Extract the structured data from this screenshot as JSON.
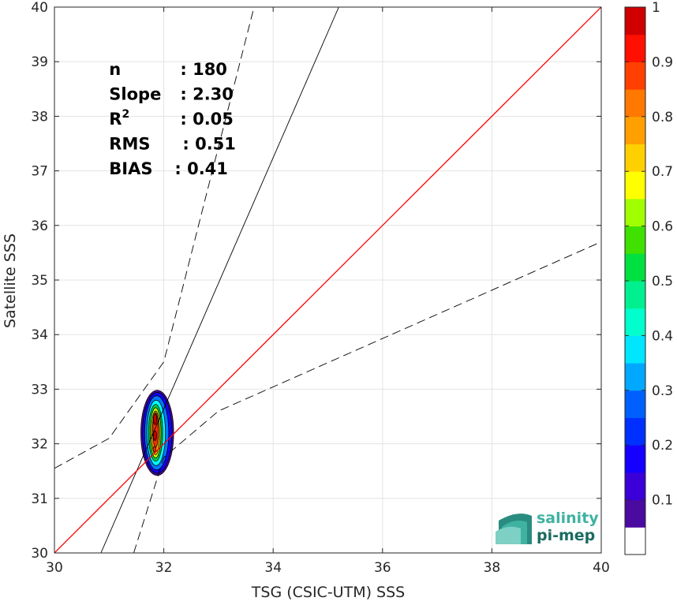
{
  "chart_data": {
    "type": "scatter",
    "xlabel": "TSG (CSIC-UTM) SSS",
    "ylabel": "Satellite SSS",
    "xlim": [
      30,
      40
    ],
    "ylim": [
      30,
      40
    ],
    "xticks": [
      30,
      32,
      34,
      36,
      38,
      40
    ],
    "yticks": [
      30,
      31,
      32,
      33,
      34,
      35,
      36,
      37,
      38,
      39,
      40
    ],
    "grid": true,
    "stats": [
      {
        "label": "n",
        "value": ": 180",
        "sup": ""
      },
      {
        "label": "Slope",
        "value": ": 2.30",
        "sup": ""
      },
      {
        "label": "R",
        "value": ": 0.05",
        "sup": "2"
      },
      {
        "label": "RMS",
        "value": ": 0.51",
        "sup": ""
      },
      {
        "label": "BIAS",
        "value": ": 0.41",
        "sup": ""
      }
    ],
    "one_to_one_line": {
      "x": [
        30,
        40
      ],
      "y": [
        30,
        40
      ],
      "color": "#ff0000"
    },
    "fit_line": {
      "x": [
        30.85,
        35.2
      ],
      "y": [
        30,
        40
      ],
      "color": "#000000"
    },
    "upper_bound_line": {
      "x": [
        30,
        31,
        32,
        33.65
      ],
      "y": [
        31.55,
        32.1,
        33.5,
        40
      ],
      "color": "#000000"
    },
    "lower_bound_line": {
      "x": [
        31.45,
        32.0,
        33.0,
        40
      ],
      "y": [
        30,
        31.75,
        32.6,
        35.7
      ],
      "color": "#000000"
    },
    "density_contours": [
      {
        "level": 0.05,
        "cx": 31.88,
        "cy": 32.2,
        "rx": 0.3,
        "ry": 0.78,
        "color": "#4b0aa0"
      },
      {
        "level": 0.1,
        "cx": 31.88,
        "cy": 32.2,
        "rx": 0.27,
        "ry": 0.74,
        "color": "#1500ff"
      },
      {
        "level": 0.25,
        "cx": 31.87,
        "cy": 32.2,
        "rx": 0.22,
        "ry": 0.68,
        "color": "#0078ff"
      },
      {
        "level": 0.4,
        "cx": 31.86,
        "cy": 32.2,
        "rx": 0.17,
        "ry": 0.6,
        "color": "#00ffff"
      },
      {
        "level": 0.5,
        "cx": 31.85,
        "cy": 32.2,
        "rx": 0.13,
        "ry": 0.52,
        "color": "#00d04a"
      },
      {
        "level": 0.6,
        "cx": 31.85,
        "cy": 32.2,
        "rx": 0.1,
        "ry": 0.46,
        "color": "#c8ff00"
      },
      {
        "level": 0.7,
        "cx": 31.85,
        "cy": 32.2,
        "rx": 0.075,
        "ry": 0.4,
        "color": "#ffa000"
      },
      {
        "level": 0.8,
        "cx": 31.85,
        "cy": 32.25,
        "rx": 0.05,
        "ry": 0.32,
        "color": "#ff3000"
      },
      {
        "level": 0.95,
        "cx": 31.84,
        "cy": 32.45,
        "rx": 0.03,
        "ry": 0.1,
        "color": "#c80000"
      },
      {
        "level": 0.95,
        "cx": 31.84,
        "cy": 32.15,
        "rx": 0.03,
        "ry": 0.09,
        "color": "#c80000"
      },
      {
        "level": 0.85,
        "cx": 31.83,
        "cy": 31.9,
        "rx": 0.025,
        "ry": 0.05,
        "color": "#ff3000"
      }
    ],
    "colorbar": {
      "ticks": [
        0.1,
        0.2,
        0.3,
        0.4,
        0.5,
        0.6,
        0.7,
        0.8,
        0.9,
        1
      ],
      "tick_labels": [
        "0.1",
        "0.2",
        "0.3",
        "0.4",
        "0.5",
        "0.6",
        "0.7",
        "0.8",
        "0.9",
        "1"
      ],
      "levels": [
        0,
        0.05,
        0.1,
        0.15,
        0.2,
        0.25,
        0.3,
        0.35,
        0.4,
        0.45,
        0.5,
        0.55,
        0.6,
        0.65,
        0.7,
        0.75,
        0.8,
        0.85,
        0.9,
        0.95,
        1
      ],
      "colors": [
        "#ffffff",
        "#4b0aa0",
        "#3b00d8",
        "#1500ff",
        "#0030ff",
        "#0060ff",
        "#00a8ff",
        "#00e6ff",
        "#00ffcc",
        "#00f090",
        "#00e040",
        "#40e000",
        "#a0ff00",
        "#ffff00",
        "#ffd000",
        "#ffa000",
        "#ff7800",
        "#ff4000",
        "#ff1000",
        "#d00000",
        "#8b0000"
      ]
    }
  },
  "logo": {
    "line1": "salinity",
    "line2": "pi-mep"
  }
}
